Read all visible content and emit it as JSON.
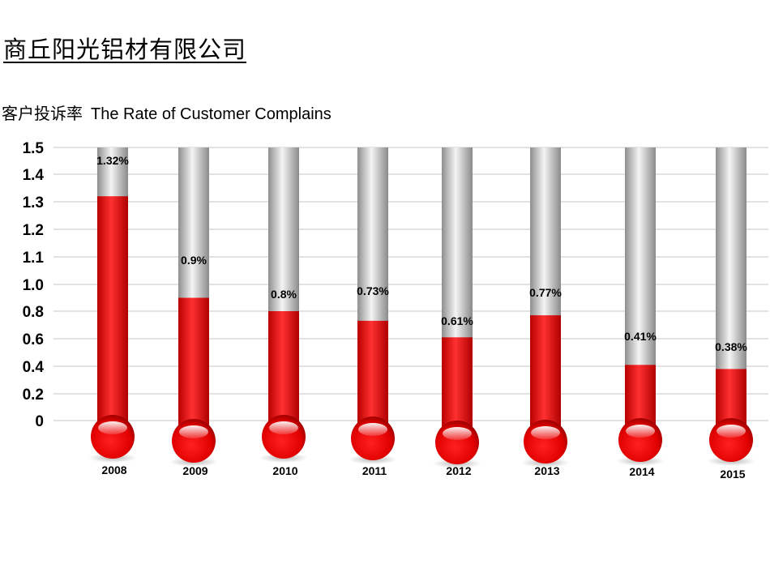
{
  "header": {
    "company": "商丘阳光铝材有限公司",
    "subtitle_cn": "客户投诉率",
    "subtitle_en": "The Rate of Customer Complains"
  },
  "colors": {
    "mercury": "#e60000",
    "tube": "#c8c8c8",
    "grid": "#c6c6c6"
  },
  "chart_data": {
    "type": "bar",
    "categories": [
      "2008",
      "2009",
      "2010",
      "2011",
      "2012",
      "2013",
      "2014",
      "2015"
    ],
    "values": [
      1.32,
      0.9,
      0.8,
      0.73,
      0.61,
      0.77,
      0.41,
      0.38
    ],
    "data_labels": [
      "1.32%",
      "0.9%",
      "0.8%",
      "0.73%",
      "0.61%",
      "0.77%",
      "0.41%",
      "0.38%"
    ],
    "ylim": [
      0,
      1.5
    ],
    "yticks": [
      {
        "value": 0,
        "label": "0"
      },
      {
        "value": 0.2,
        "label": "0.2"
      },
      {
        "value": 0.4,
        "label": "0.4"
      },
      {
        "value": 0.6,
        "label": "0.6"
      },
      {
        "value": 0.8,
        "label": "0.8"
      },
      {
        "value": 1.0,
        "label": "1.0"
      },
      {
        "value": 1.1,
        "label": "1.1"
      },
      {
        "value": 1.2,
        "label": "1.2"
      },
      {
        "value": 1.3,
        "label": "1.3"
      },
      {
        "value": 1.4,
        "label": "1.4"
      },
      {
        "value": 1.5,
        "label": "1.5"
      }
    ],
    "grid": true,
    "style": "thermometer"
  }
}
